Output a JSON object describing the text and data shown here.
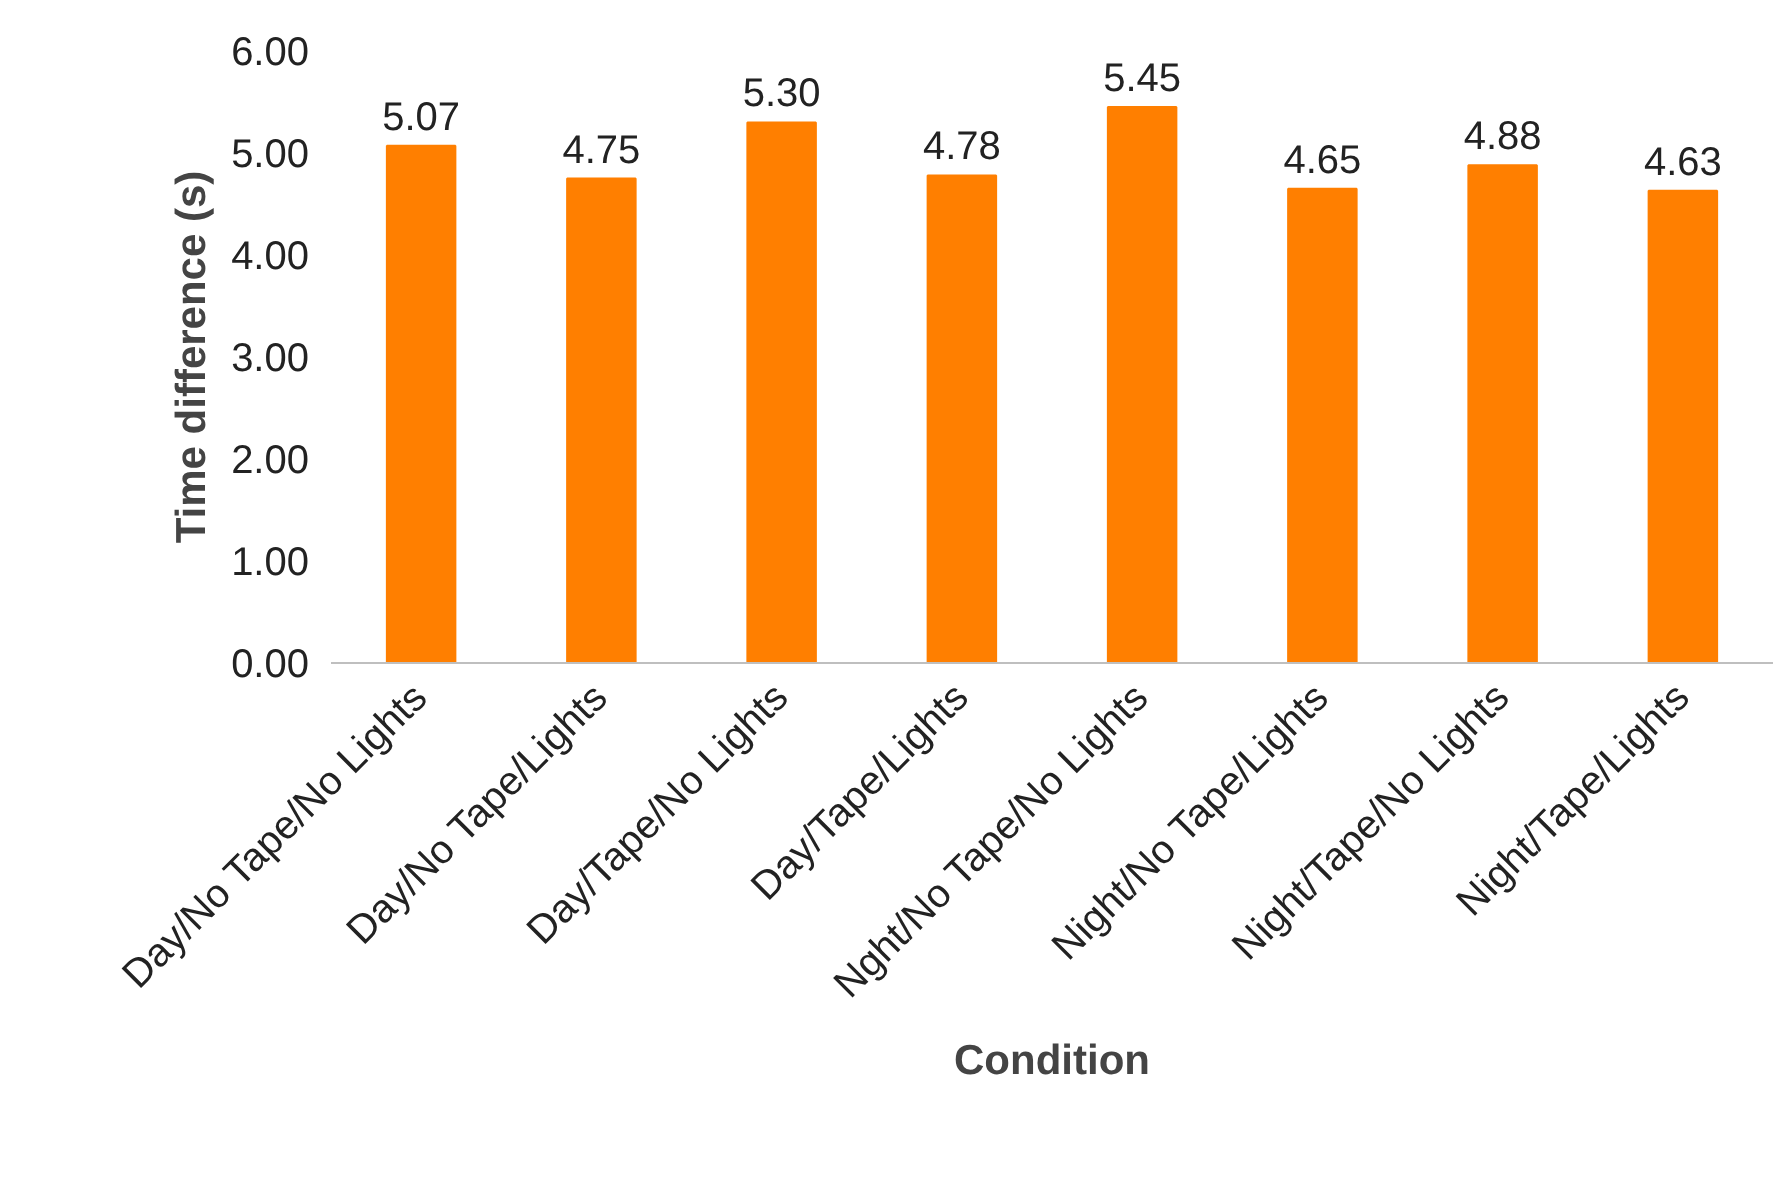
{
  "chart_data": {
    "type": "bar",
    "xlabel": "Condition",
    "ylabel": "Time difference (s)",
    "categories": [
      "Day/No Tape/No Lights",
      "Day/No Tape/Lights",
      "Day/Tape/No Lights",
      "Day/Tape/Lights",
      "Nght/No Tape/No Lights",
      "Night/No Tape/Lights",
      "Night/Tape/No Lights",
      "Night/Tape/Lights"
    ],
    "values": [
      5.07,
      4.75,
      5.3,
      4.78,
      5.45,
      4.65,
      4.88,
      4.63
    ],
    "color": "#ff7f00",
    "ylim": [
      0,
      6
    ],
    "yticks": [
      {
        "value": 0,
        "label": "0.00"
      },
      {
        "value": 1,
        "label": "1.00"
      },
      {
        "value": 2,
        "label": "2.00"
      },
      {
        "value": 3,
        "label": "3.00"
      },
      {
        "value": 4,
        "label": "4.00"
      },
      {
        "value": 5,
        "label": "5.00"
      },
      {
        "value": 6,
        "label": "6.00"
      }
    ],
    "value_labels": [
      "5.07",
      "4.75",
      "5.30",
      "4.78",
      "5.45",
      "4.65",
      "4.88",
      "4.63"
    ],
    "grid": false
  }
}
